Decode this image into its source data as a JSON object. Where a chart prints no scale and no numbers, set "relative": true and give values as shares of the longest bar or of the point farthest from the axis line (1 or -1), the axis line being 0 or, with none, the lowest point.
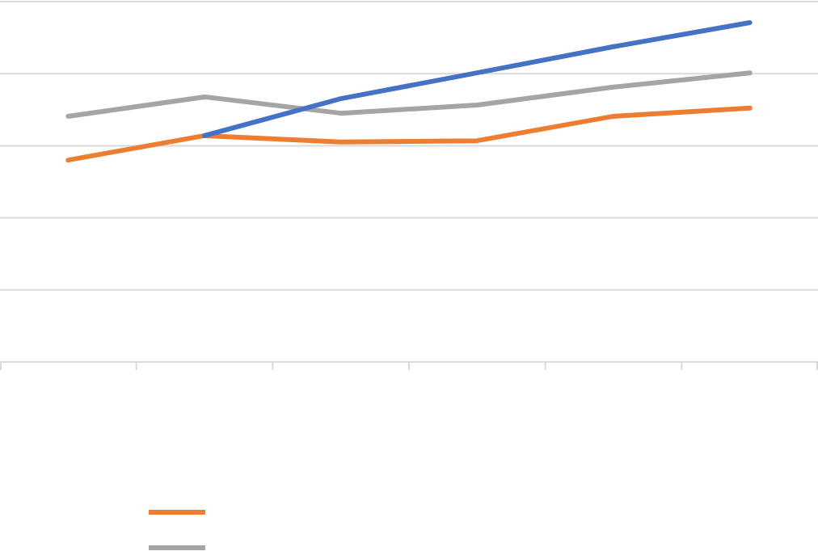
{
  "chart_data": {
    "type": "line",
    "relative": true,
    "categories": [
      null,
      null,
      null,
      null,
      null,
      null
    ],
    "grid": "y",
    "series": [
      {
        "color": "#ed7d31",
        "values": [
          0.595,
          0.667,
          0.648,
          0.652,
          0.724,
          0.748
        ]
      },
      {
        "color": "#a5a5a5",
        "values": [
          0.724,
          0.781,
          0.733,
          0.757,
          0.81,
          0.852
        ]
      },
      {
        "color": "#4472c4",
        "values": [
          null,
          0.667,
          0.776,
          0.852,
          0.929,
          1
        ]
      }
    ]
  }
}
